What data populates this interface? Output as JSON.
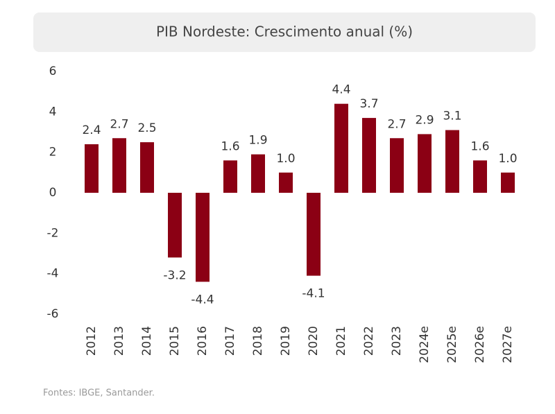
{
  "chart_data": {
    "type": "bar",
    "title": "PIB Nordeste: Crescimento anual (%)",
    "categories": [
      "2012",
      "2013",
      "2014",
      "2015",
      "2016",
      "2017",
      "2018",
      "2019",
      "2020",
      "2021",
      "2022",
      "2023",
      "2024e",
      "2025e",
      "2026e",
      "2027e"
    ],
    "values": [
      2.4,
      2.7,
      2.5,
      -3.2,
      -4.4,
      1.6,
      1.9,
      1.0,
      -4.1,
      4.4,
      3.7,
      2.7,
      2.9,
      3.1,
      1.6,
      1.0
    ],
    "value_labels": [
      "2.4",
      "2.7",
      "2.5",
      "-3.2",
      "-4.4",
      "1.6",
      "1.9",
      "1.0",
      "-4.1",
      "4.4",
      "3.7",
      "2.7",
      "2.9",
      "3.1",
      "1.6",
      "1.0"
    ],
    "color": "#8b0014",
    "ylim": [
      -6,
      6
    ],
    "yticks": [
      -6,
      -4,
      -2,
      0,
      2,
      4,
      6
    ],
    "grid": false,
    "source": "Fontes: IBGE, Santander."
  }
}
